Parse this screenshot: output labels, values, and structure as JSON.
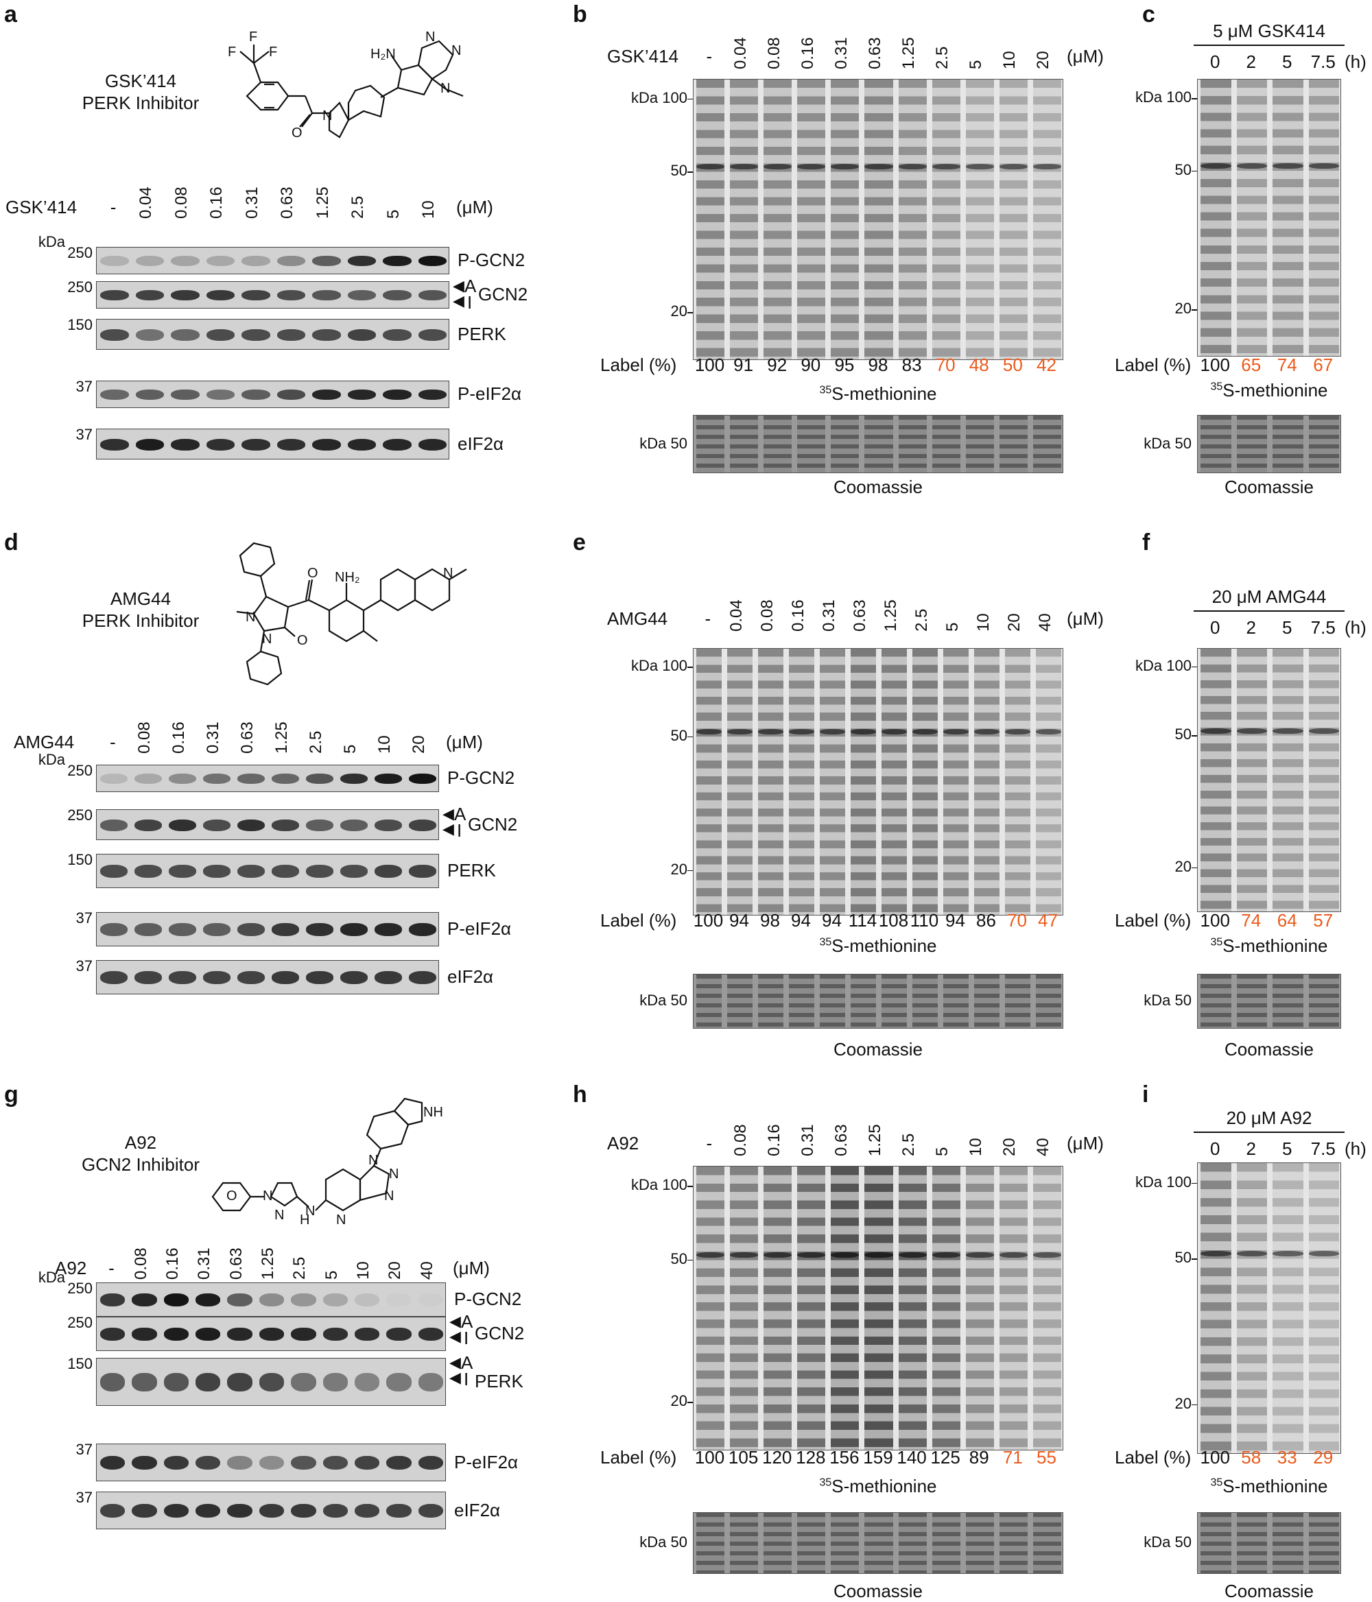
{
  "panels": {
    "a": {
      "letter": "a",
      "compound_name": "GSK’414",
      "compound_class": "PERK Inhibitor",
      "drug_label": "GSK’414",
      "doses": [
        "-",
        "0.04",
        "0.08",
        "0.16",
        "0.31",
        "0.63",
        "1.25",
        "2.5",
        "5",
        "10"
      ],
      "unit": "(μM)",
      "kda": "kDa",
      "rows": [
        {
          "mw": "250",
          "name": "P-GCN2"
        },
        {
          "mw": "250",
          "name": "GCN2"
        },
        {
          "mw": "150",
          "name": "PERK"
        },
        {
          "mw": "37",
          "name": "P-eIF2α"
        },
        {
          "mw": "37",
          "name": "eIF2α"
        }
      ],
      "arrow_a": "A",
      "arrow_i": "I",
      "band_intensity": {
        "P-GCN2": [
          0.15,
          0.2,
          0.22,
          0.2,
          0.22,
          0.35,
          0.6,
          0.85,
          0.95,
          1.0
        ],
        "GCN2": [
          0.75,
          0.75,
          0.8,
          0.8,
          0.75,
          0.7,
          0.65,
          0.6,
          0.65,
          0.65
        ],
        "PERK": [
          0.7,
          0.5,
          0.55,
          0.7,
          0.7,
          0.7,
          0.7,
          0.75,
          0.7,
          0.7
        ],
        "P-eIF2α": [
          0.55,
          0.6,
          0.6,
          0.5,
          0.6,
          0.7,
          0.9,
          0.9,
          0.92,
          0.9
        ],
        "eIF2α": [
          0.85,
          0.95,
          0.9,
          0.85,
          0.85,
          0.85,
          0.9,
          0.9,
          0.9,
          0.9
        ]
      }
    },
    "b": {
      "letter": "b",
      "drug_label": "GSK’414",
      "doses": [
        "-",
        "0.04",
        "0.08",
        "0.16",
        "0.31",
        "0.63",
        "1.25",
        "2.5",
        "5",
        "10",
        "20"
      ],
      "unit": "(μM)",
      "mw_markers": [
        "kDa 100",
        "50",
        "20"
      ],
      "label_title": "Label (%)",
      "label_values": [
        "100",
        "91",
        "92",
        "90",
        "95",
        "98",
        "83",
        "70",
        "48",
        "50",
        "42"
      ],
      "label_highlight": [
        false,
        false,
        false,
        false,
        false,
        false,
        false,
        true,
        true,
        true,
        true
      ],
      "caption": "S-methionine",
      "caption_sup": "35",
      "coomassie_mw": "kDa 50",
      "coomassie": "Coomassie"
    },
    "c": {
      "letter": "c",
      "header": "5 μM GSK414",
      "times": [
        "0",
        "2",
        "5",
        "7.5"
      ],
      "unit": "(h)",
      "mw_markers": [
        "kDa 100",
        "50",
        "20"
      ],
      "label_title": "Label (%)",
      "label_values": [
        "100",
        "65",
        "74",
        "67"
      ],
      "label_highlight": [
        false,
        true,
        true,
        true
      ],
      "caption": "S-methionine",
      "caption_sup": "35",
      "coomassie_mw": "kDa 50",
      "coomassie": "Coomassie"
    },
    "d": {
      "letter": "d",
      "compound_name": "AMG44",
      "compound_class": "PERK Inhibitor",
      "drug_label": "AMG44",
      "doses": [
        "-",
        "0.08",
        "0.16",
        "0.31",
        "0.63",
        "1.25",
        "2.5",
        "5",
        "10",
        "20"
      ],
      "unit": "(μM)",
      "kda": "kDa",
      "rows": [
        {
          "mw": "250",
          "name": "P-GCN2"
        },
        {
          "mw": "250",
          "name": "GCN2"
        },
        {
          "mw": "150",
          "name": "PERK"
        },
        {
          "mw": "37",
          "name": "P-eIF2α"
        },
        {
          "mw": "37",
          "name": "eIF2α"
        }
      ],
      "arrow_a": "A",
      "arrow_i": "I",
      "band_intensity": {
        "P-GCN2": [
          0.12,
          0.2,
          0.35,
          0.5,
          0.55,
          0.55,
          0.65,
          0.85,
          0.95,
          1.0
        ],
        "GCN2": [
          0.6,
          0.75,
          0.85,
          0.7,
          0.85,
          0.75,
          0.6,
          0.6,
          0.7,
          0.75
        ],
        "PERK": [
          0.7,
          0.7,
          0.7,
          0.7,
          0.7,
          0.7,
          0.7,
          0.7,
          0.75,
          0.75
        ],
        "P-eIF2α": [
          0.6,
          0.6,
          0.6,
          0.6,
          0.7,
          0.8,
          0.85,
          0.9,
          0.9,
          0.9
        ],
        "eIF2α": [
          0.75,
          0.75,
          0.75,
          0.75,
          0.75,
          0.8,
          0.8,
          0.8,
          0.8,
          0.8
        ]
      }
    },
    "e": {
      "letter": "e",
      "drug_label": "AMG44",
      "doses": [
        "-",
        "0.04",
        "0.08",
        "0.16",
        "0.31",
        "0.63",
        "1.25",
        "2.5",
        "5",
        "10",
        "20",
        "40"
      ],
      "unit": "(μM)",
      "mw_markers": [
        "kDa 100",
        "50",
        "20"
      ],
      "label_title": "Label (%)",
      "label_values": [
        "100",
        "94",
        "98",
        "94",
        "94",
        "114",
        "108",
        "110",
        "94",
        "86",
        "70",
        "47"
      ],
      "label_highlight": [
        false,
        false,
        false,
        false,
        false,
        false,
        false,
        false,
        false,
        false,
        true,
        true
      ],
      "caption": "S-methionine",
      "caption_sup": "35",
      "coomassie_mw": "kDa 50",
      "coomassie": "Coomassie"
    },
    "f": {
      "letter": "f",
      "header": "20 μM AMG44",
      "times": [
        "0",
        "2",
        "5",
        "7.5"
      ],
      "unit": "(h)",
      "mw_markers": [
        "kDa 100",
        "50",
        "20"
      ],
      "label_title": "Label (%)",
      "label_values": [
        "100",
        "74",
        "64",
        "57"
      ],
      "label_highlight": [
        false,
        true,
        true,
        true
      ],
      "caption": "S-methionine",
      "caption_sup": "35",
      "coomassie_mw": "kDa 50",
      "coomassie": "Coomassie"
    },
    "g": {
      "letter": "g",
      "compound_name": "A92",
      "compound_class": "GCN2 Inhibitor",
      "drug_label": "A92",
      "doses": [
        "-",
        "0.08",
        "0.16",
        "0.31",
        "0.63",
        "1.25",
        "2.5",
        "5",
        "10",
        "20",
        "40"
      ],
      "unit": "(μM)",
      "kda": "kDa",
      "rows": [
        {
          "mw": "250",
          "name": "P-GCN2"
        },
        {
          "mw": "250",
          "name": "GCN2"
        },
        {
          "mw": "150",
          "name": "PERK"
        },
        {
          "mw": "37",
          "name": "P-eIF2α"
        },
        {
          "mw": "37",
          "name": "eIF2α"
        }
      ],
      "arrow_a": "A",
      "arrow_i": "I",
      "band_intensity": {
        "P-GCN2": [
          0.8,
          0.9,
          1.0,
          0.95,
          0.6,
          0.35,
          0.3,
          0.2,
          0.08,
          0.0,
          0.0
        ],
        "GCN2": [
          0.85,
          0.9,
          0.95,
          0.95,
          0.9,
          0.9,
          0.9,
          0.85,
          0.85,
          0.85,
          0.85
        ],
        "PERK": [
          0.6,
          0.6,
          0.65,
          0.75,
          0.75,
          0.7,
          0.5,
          0.45,
          0.4,
          0.45,
          0.45
        ],
        "P-eIF2α": [
          0.85,
          0.85,
          0.8,
          0.75,
          0.4,
          0.35,
          0.65,
          0.7,
          0.75,
          0.8,
          0.8
        ],
        "eIF2α": [
          0.75,
          0.8,
          0.85,
          0.85,
          0.85,
          0.8,
          0.8,
          0.75,
          0.75,
          0.75,
          0.75
        ]
      }
    },
    "h": {
      "letter": "h",
      "drug_label": "A92",
      "doses": [
        "-",
        "0.08",
        "0.16",
        "0.31",
        "0.63",
        "1.25",
        "2.5",
        "5",
        "10",
        "20",
        "40"
      ],
      "unit": "(μM)",
      "mw_markers": [
        "kDa 100",
        "50",
        "20"
      ],
      "label_title": "Label (%)",
      "label_values": [
        "100",
        "105",
        "120",
        "128",
        "156",
        "159",
        "140",
        "125",
        "89",
        "71",
        "55"
      ],
      "label_highlight": [
        false,
        false,
        false,
        false,
        false,
        false,
        false,
        false,
        false,
        true,
        true
      ],
      "caption": "S-methionine",
      "caption_sup": "35",
      "coomassie_mw": "kDa 50",
      "coomassie": "Coomassie"
    },
    "i": {
      "letter": "i",
      "header": "20 μM A92",
      "times": [
        "0",
        "2",
        "5",
        "7.5"
      ],
      "unit": "(h)",
      "mw_markers": [
        "kDa 100",
        "50",
        "20"
      ],
      "label_title": "Label (%)",
      "label_values": [
        "100",
        "58",
        "33",
        "29"
      ],
      "label_highlight": [
        false,
        true,
        true,
        true
      ],
      "caption": "S-methionine",
      "caption_sup": "35",
      "coomassie_mw": "kDa 50",
      "coomassie": "Coomassie"
    }
  },
  "structure_atoms": {
    "a": {
      "F1": "F",
      "F2": "F",
      "F3": "F",
      "H2N": "H₂N",
      "N1": "N",
      "N2": "N",
      "N3": "N",
      "N4": "N",
      "O": "O"
    },
    "d": {
      "NH2": "NH₂",
      "O1": "O",
      "O2": "O",
      "N1": "N",
      "N2": "N",
      "N3": "N"
    },
    "g": {
      "O": "O",
      "N1": "N",
      "N2": "N",
      "N3": "N",
      "N4": "N",
      "N5": "N",
      "N6": "N",
      "N7": "N",
      "H": "H",
      "NH": "NH"
    }
  },
  "colors": {
    "highlight": "#ea5b1c",
    "text": "#111111"
  }
}
